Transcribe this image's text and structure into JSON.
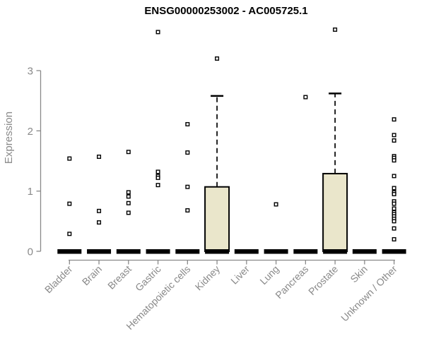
{
  "chart_data": {
    "type": "boxplot",
    "title": "ENSG00000253002 - AC005725.1",
    "ylabel": "Expression",
    "xlabel": "",
    "ylim": [
      0,
      3.75
    ],
    "yticks": [
      0,
      1,
      2,
      3
    ],
    "grid": false,
    "legend": null,
    "categories": [
      "Bladder",
      "Brain",
      "Breast",
      "Gastric",
      "Hematopoietic cells",
      "Kidney",
      "Liver",
      "Lung",
      "Pancreas",
      "Prostate",
      "Skin",
      "Unknown / Other"
    ],
    "boxes": [
      {
        "category": "Bladder",
        "q1": 0,
        "median": 0,
        "q3": 0,
        "whisker_low": 0,
        "whisker_high": 0,
        "outliers": [
          1.54,
          0.79,
          0.29
        ]
      },
      {
        "category": "Brain",
        "q1": 0,
        "median": 0,
        "q3": 0,
        "whisker_low": 0,
        "whisker_high": 0,
        "outliers": [
          1.57,
          0.67,
          0.48
        ]
      },
      {
        "category": "Breast",
        "q1": 0,
        "median": 0,
        "q3": 0,
        "whisker_low": 0,
        "whisker_high": 0,
        "outliers": [
          1.65,
          0.98,
          0.91,
          0.8,
          0.64
        ]
      },
      {
        "category": "Gastric",
        "q1": 0,
        "median": 0,
        "q3": 0,
        "whisker_low": 0,
        "whisker_high": 0,
        "outliers": [
          3.64,
          1.32,
          1.25,
          1.22,
          1.1
        ]
      },
      {
        "category": "Hematopoietic cells",
        "q1": 0,
        "median": 0,
        "q3": 0,
        "whisker_low": 0,
        "whisker_high": 0,
        "outliers": [
          2.11,
          1.64,
          1.07,
          0.68
        ]
      },
      {
        "category": "Kidney",
        "q1": 0,
        "median": 0,
        "q3": 1.07,
        "whisker_low": 0,
        "whisker_high": 2.58,
        "outliers": [
          3.2
        ]
      },
      {
        "category": "Liver",
        "q1": 0,
        "median": 0,
        "q3": 0,
        "whisker_low": 0,
        "whisker_high": 0,
        "outliers": []
      },
      {
        "category": "Lung",
        "q1": 0,
        "median": 0,
        "q3": 0,
        "whisker_low": 0,
        "whisker_high": 0,
        "outliers": [
          0.78
        ]
      },
      {
        "category": "Pancreas",
        "q1": 0,
        "median": 0,
        "q3": 0,
        "whisker_low": 0,
        "whisker_high": 0,
        "outliers": [
          2.56
        ]
      },
      {
        "category": "Prostate",
        "q1": 0,
        "median": 0,
        "q3": 1.29,
        "whisker_low": 0,
        "whisker_high": 2.62,
        "outliers": [
          3.68
        ]
      },
      {
        "category": "Skin",
        "q1": 0,
        "median": 0,
        "q3": 0,
        "whisker_low": 0,
        "whisker_high": 0,
        "outliers": []
      },
      {
        "category": "Unknown / Other",
        "q1": 0,
        "median": 0,
        "q3": 0,
        "whisker_low": 0,
        "whisker_high": 0,
        "outliers": [
          2.19,
          1.93,
          1.84,
          1.58,
          1.55,
          1.51,
          1.25,
          1.05,
          0.98,
          0.95,
          0.83,
          0.79,
          0.71,
          0.65,
          0.62,
          0.58,
          0.54,
          0.5,
          0.38,
          0.2
        ]
      }
    ],
    "colors": {
      "box_fill": "#EAE6CB",
      "box_stroke": "#000000",
      "median": "#000000",
      "outlier_stroke": "#000000",
      "outlier_fill": "#FFFFFF",
      "axis": "#898989",
      "tick_label": "#898989",
      "title": "#000000",
      "background": "#FFFFFF"
    }
  }
}
